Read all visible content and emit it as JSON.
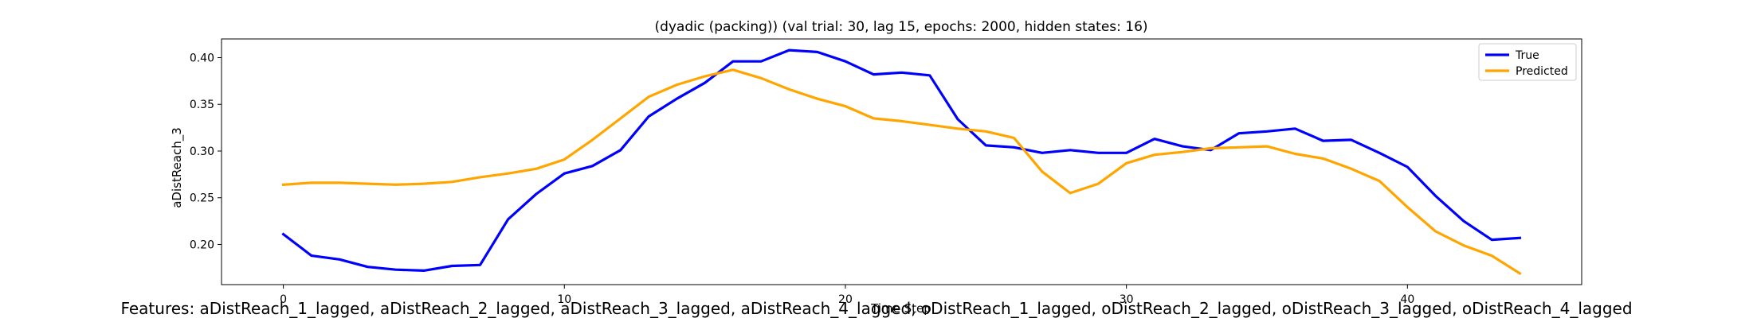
{
  "chart_data": {
    "type": "line",
    "title": "(dyadic (packing)) (val trial: 30, lag 15, epochs: 2000, hidden states: 16)",
    "xlabel": "Time Step",
    "ylabel": "aDistReach_3",
    "xlim": [
      -2.2,
      46.2
    ],
    "ylim": [
      0.157,
      0.42
    ],
    "xticks": [
      0,
      10,
      20,
      30,
      40
    ],
    "yticks": [
      0.2,
      0.25,
      0.3,
      0.35,
      0.4
    ],
    "ytick_labels": [
      "0.20",
      "0.25",
      "0.30",
      "0.35",
      "0.40"
    ],
    "grid": false,
    "legend_position": "top-right",
    "x": [
      0,
      1,
      2,
      3,
      4,
      5,
      6,
      7,
      8,
      9,
      10,
      11,
      12,
      13,
      14,
      15,
      16,
      17,
      18,
      19,
      20,
      21,
      22,
      23,
      24,
      25,
      26,
      27,
      28,
      29,
      30,
      31,
      32,
      33,
      34,
      35,
      36,
      37,
      38,
      39,
      40,
      41,
      42,
      43,
      44
    ],
    "series": [
      {
        "name": "True",
        "color": "#0000ff",
        "values": [
          0.211,
          0.188,
          0.184,
          0.176,
          0.173,
          0.172,
          0.177,
          0.178,
          0.227,
          0.254,
          0.276,
          0.284,
          0.301,
          0.337,
          0.356,
          0.373,
          0.396,
          0.396,
          0.408,
          0.406,
          0.396,
          0.382,
          0.384,
          0.381,
          0.334,
          0.306,
          0.304,
          0.298,
          0.301,
          0.298,
          0.298,
          0.313,
          0.305,
          0.301,
          0.319,
          0.321,
          0.324,
          0.311,
          0.312,
          0.298,
          0.283,
          0.252,
          0.225,
          0.205,
          0.207
        ]
      },
      {
        "name": "Predicted",
        "color": "#ffa500",
        "values": [
          0.264,
          0.266,
          0.266,
          0.265,
          0.264,
          0.265,
          0.267,
          0.272,
          0.276,
          0.281,
          0.291,
          0.312,
          0.335,
          0.358,
          0.371,
          0.38,
          0.387,
          0.378,
          0.366,
          0.356,
          0.348,
          0.335,
          0.332,
          0.328,
          0.324,
          0.321,
          0.314,
          0.278,
          0.255,
          0.265,
          0.287,
          0.296,
          0.299,
          0.303,
          0.304,
          0.305,
          0.297,
          0.292,
          0.281,
          0.268,
          0.24,
          0.214,
          0.199,
          0.188,
          0.169
        ]
      }
    ]
  },
  "features_caption": "Features: aDistReach_1_lagged, aDistReach_2_lagged, aDistReach_3_lagged, aDistReach_4_lagged, oDistReach_1_lagged, oDistReach_2_lagged, oDistReach_3_lagged, oDistReach_4_lagged"
}
